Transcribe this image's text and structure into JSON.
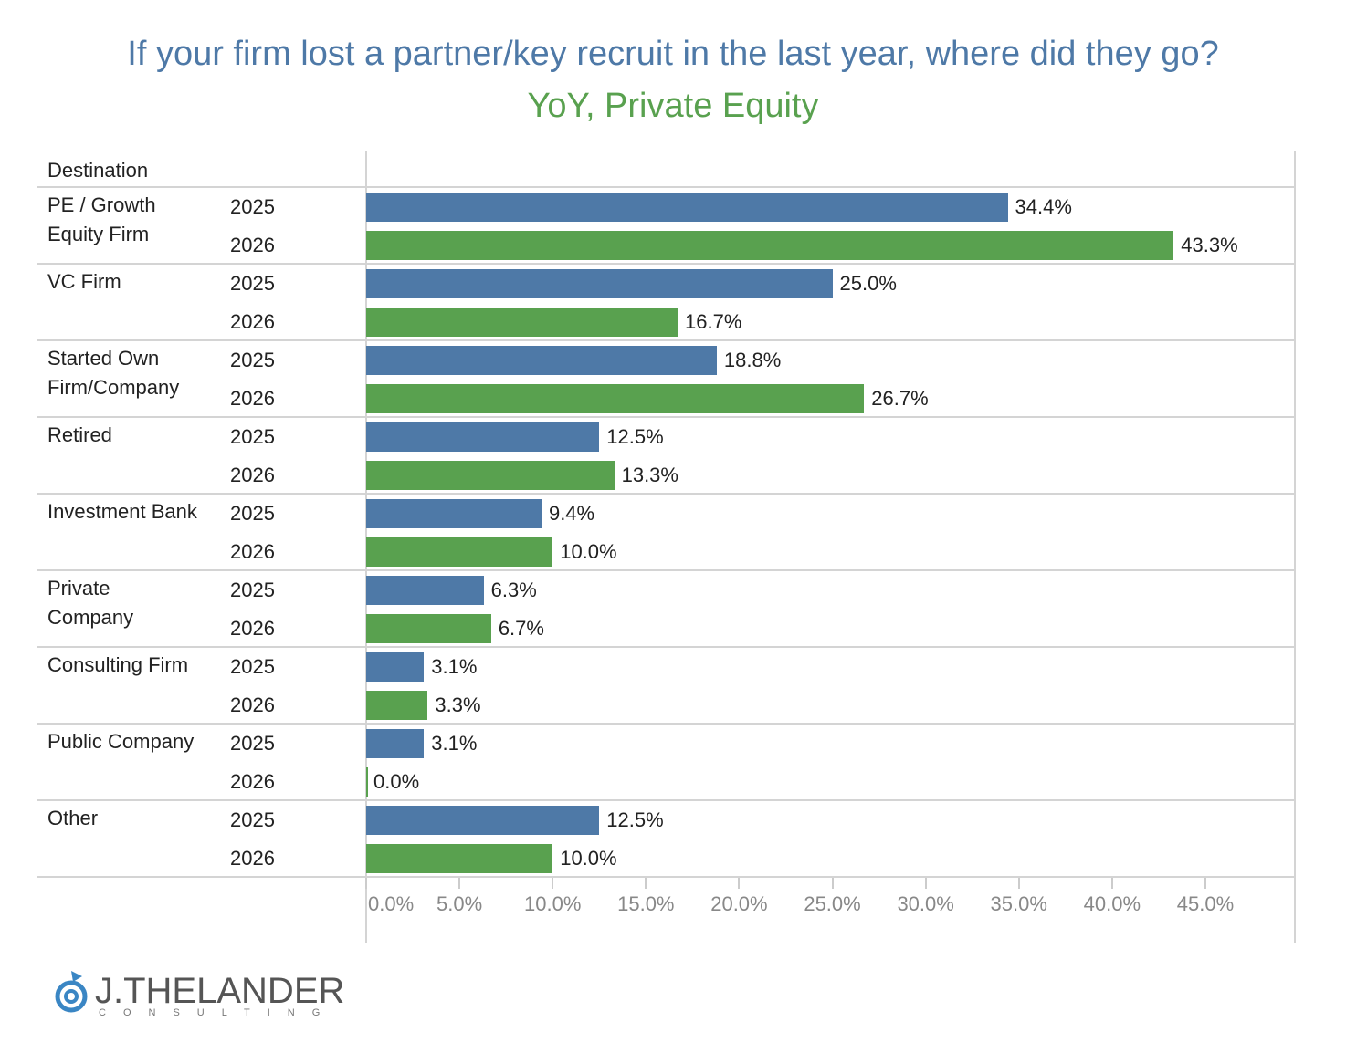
{
  "chart_data": {
    "type": "grouped-hbar",
    "title": "If your firm lost a partner/key recruit in the last year, where did they go?",
    "subtitle": "YoY, Private Equity",
    "row_header": "Destination",
    "categories": [
      "PE / Growth Equity Firm",
      "VC Firm",
      "Started Own Firm/Company",
      "Retired",
      "Investment Bank",
      "Private Company",
      "Consulting Firm",
      "Public Company",
      "Other"
    ],
    "series": [
      {
        "name": "2025",
        "color": "#4e79a7",
        "values": [
          34.4,
          25.0,
          18.8,
          12.5,
          9.4,
          6.3,
          3.1,
          3.1,
          12.5
        ],
        "value_labels": [
          "34.4%",
          "25.0%",
          "18.8%",
          "12.5%",
          "9.4%",
          "6.3%",
          "3.1%",
          "3.1%",
          "12.5%"
        ]
      },
      {
        "name": "2026",
        "color": "#59a14f",
        "values": [
          43.3,
          16.7,
          26.7,
          13.3,
          10.0,
          6.7,
          3.3,
          0.0,
          10.0
        ],
        "value_labels": [
          "43.3%",
          "16.7%",
          "26.7%",
          "13.3%",
          "10.0%",
          "6.7%",
          "3.3%",
          "0.0%",
          "10.0%"
        ]
      }
    ],
    "xlim": [
      0,
      49.8
    ],
    "xticks": [
      {
        "value": 0,
        "label": "0.0%"
      },
      {
        "value": 5,
        "label": "5.0%"
      },
      {
        "value": 10,
        "label": "10.0%"
      },
      {
        "value": 15,
        "label": "15.0%"
      },
      {
        "value": 20,
        "label": "20.0%"
      },
      {
        "value": 25,
        "label": "25.0%"
      },
      {
        "value": 30,
        "label": "30.0%"
      },
      {
        "value": 35,
        "label": "35.0%"
      },
      {
        "value": 40,
        "label": "40.0%"
      },
      {
        "value": 45,
        "label": "45.0%"
      }
    ]
  },
  "logo": {
    "name": "J.THELANDER",
    "tagline": "CONSULTING"
  }
}
